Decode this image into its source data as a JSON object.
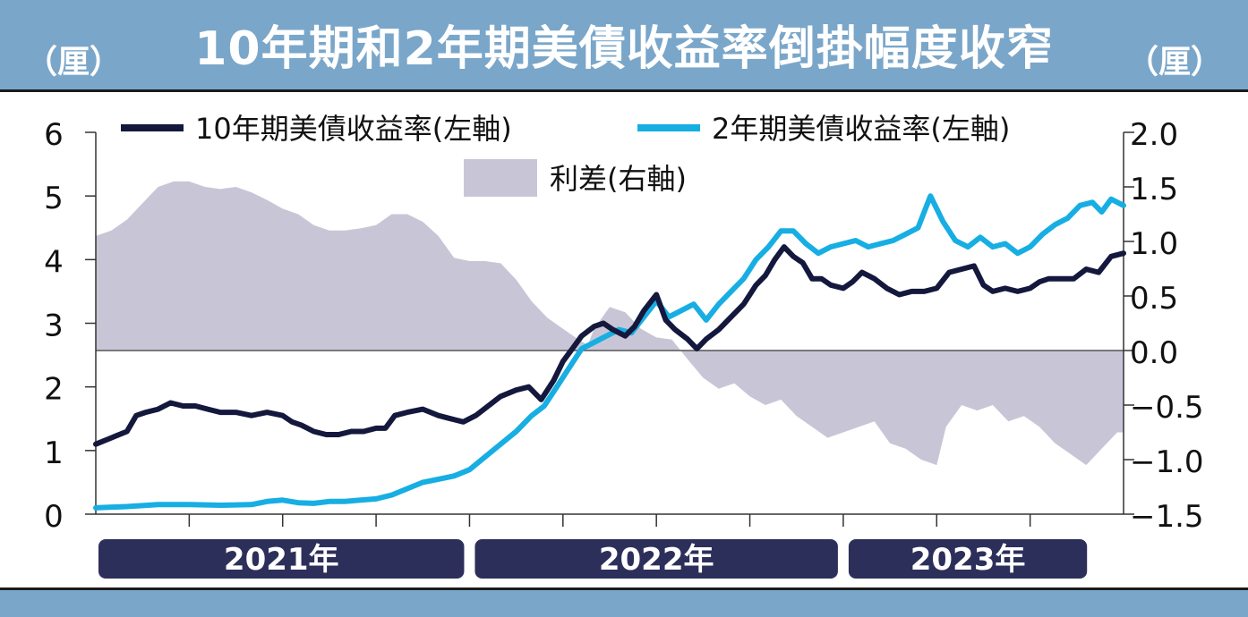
{
  "header": {
    "title": "10年期和2年期美債收益率倒掛幅度收窄",
    "unit_left": "（厘）",
    "unit_right": "（厘）"
  },
  "colors": {
    "ten_year": "#14183d",
    "two_year": "#17aee3",
    "spread": "#c8c6d6",
    "year_band": "#2d2f5b",
    "frame": "#7aa6c9"
  },
  "chart_data": {
    "type": "line",
    "x_unit": "months since Jan 2021",
    "x_range": [
      0,
      32
    ],
    "left_axis": {
      "range": [
        0,
        6
      ],
      "ticks": [
        "0",
        "1",
        "2",
        "3",
        "4",
        "5",
        "6"
      ]
    },
    "right_axis": {
      "range": [
        -1.5,
        2.0
      ],
      "ticks": [
        "−1.5",
        "−1.0",
        "−0.5",
        "0.0",
        "0.5",
        "1.0",
        "1.5",
        "2.0"
      ]
    },
    "years": [
      {
        "label": "2021年",
        "from": 0,
        "to": 12
      },
      {
        "label": "2022年",
        "from": 12,
        "to": 24
      },
      {
        "label": "2023年",
        "from": 24,
        "to": 32
      }
    ],
    "series": [
      {
        "name": "10年期美債收益率(左軸)",
        "axis": "left",
        "points": [
          [
            0,
            1.1
          ],
          [
            0.5,
            1.2
          ],
          [
            1,
            1.3
          ],
          [
            1.3,
            1.55
          ],
          [
            1.6,
            1.6
          ],
          [
            2,
            1.65
          ],
          [
            2.4,
            1.75
          ],
          [
            2.8,
            1.7
          ],
          [
            3.2,
            1.7
          ],
          [
            3.6,
            1.65
          ],
          [
            4,
            1.6
          ],
          [
            4.5,
            1.6
          ],
          [
            5,
            1.55
          ],
          [
            5.5,
            1.6
          ],
          [
            6,
            1.55
          ],
          [
            6.3,
            1.45
          ],
          [
            6.6,
            1.4
          ],
          [
            7,
            1.3
          ],
          [
            7.4,
            1.25
          ],
          [
            7.8,
            1.25
          ],
          [
            8.2,
            1.3
          ],
          [
            8.6,
            1.3
          ],
          [
            9,
            1.35
          ],
          [
            9.3,
            1.35
          ],
          [
            9.6,
            1.55
          ],
          [
            10,
            1.6
          ],
          [
            10.5,
            1.65
          ],
          [
            11,
            1.55
          ],
          [
            11.4,
            1.5
          ],
          [
            11.8,
            1.45
          ],
          [
            12.2,
            1.55
          ],
          [
            12.6,
            1.7
          ],
          [
            13,
            1.85
          ],
          [
            13.5,
            1.95
          ],
          [
            13.9,
            2.0
          ],
          [
            14.3,
            1.8
          ],
          [
            14.7,
            2.1
          ],
          [
            15,
            2.4
          ],
          [
            15.3,
            2.6
          ],
          [
            15.6,
            2.8
          ],
          [
            16,
            2.95
          ],
          [
            16.3,
            3.0
          ],
          [
            16.6,
            2.9
          ],
          [
            17,
            2.8
          ],
          [
            17.3,
            2.95
          ],
          [
            17.6,
            3.2
          ],
          [
            18,
            3.45
          ],
          [
            18.3,
            3.05
          ],
          [
            18.6,
            2.9
          ],
          [
            19,
            2.75
          ],
          [
            19.3,
            2.6
          ],
          [
            19.6,
            2.75
          ],
          [
            20,
            2.9
          ],
          [
            20.4,
            3.1
          ],
          [
            20.8,
            3.3
          ],
          [
            21.2,
            3.6
          ],
          [
            21.5,
            3.75
          ],
          [
            21.8,
            4.0
          ],
          [
            22.1,
            4.2
          ],
          [
            22.4,
            4.05
          ],
          [
            22.7,
            3.95
          ],
          [
            23,
            3.7
          ],
          [
            23.3,
            3.7
          ],
          [
            23.6,
            3.6
          ],
          [
            24,
            3.55
          ],
          [
            24.3,
            3.65
          ],
          [
            24.6,
            3.8
          ],
          [
            25,
            3.7
          ],
          [
            25.4,
            3.55
          ],
          [
            25.8,
            3.45
          ],
          [
            26.2,
            3.5
          ],
          [
            26.6,
            3.5
          ],
          [
            27,
            3.55
          ],
          [
            27.4,
            3.8
          ],
          [
            27.8,
            3.85
          ],
          [
            28.2,
            3.9
          ],
          [
            28.5,
            3.6
          ],
          [
            28.8,
            3.5
          ],
          [
            29.2,
            3.55
          ],
          [
            29.6,
            3.5
          ],
          [
            30,
            3.55
          ],
          [
            30.3,
            3.65
          ],
          [
            30.6,
            3.7
          ],
          [
            31,
            3.7
          ],
          [
            31.4,
            3.7
          ],
          [
            31.8,
            3.85
          ],
          [
            32.2,
            3.8
          ],
          [
            32.6,
            4.05
          ],
          [
            33,
            4.1
          ]
        ]
      },
      {
        "name": "2年期美債收益率(左軸)",
        "axis": "left",
        "points": [
          [
            0,
            0.1
          ],
          [
            1,
            0.12
          ],
          [
            2,
            0.15
          ],
          [
            3,
            0.15
          ],
          [
            4,
            0.14
          ],
          [
            5,
            0.15
          ],
          [
            5.5,
            0.2
          ],
          [
            6,
            0.22
          ],
          [
            6.5,
            0.18
          ],
          [
            7,
            0.17
          ],
          [
            7.5,
            0.2
          ],
          [
            8,
            0.2
          ],
          [
            8.5,
            0.22
          ],
          [
            9,
            0.24
          ],
          [
            9.5,
            0.3
          ],
          [
            10,
            0.4
          ],
          [
            10.5,
            0.5
          ],
          [
            11,
            0.55
          ],
          [
            11.5,
            0.6
          ],
          [
            12,
            0.7
          ],
          [
            12.5,
            0.9
          ],
          [
            13,
            1.1
          ],
          [
            13.5,
            1.3
          ],
          [
            14,
            1.55
          ],
          [
            14.4,
            1.7
          ],
          [
            14.8,
            2.0
          ],
          [
            15.2,
            2.3
          ],
          [
            15.6,
            2.6
          ],
          [
            16,
            2.7
          ],
          [
            16.4,
            2.8
          ],
          [
            16.8,
            2.9
          ],
          [
            17.2,
            2.85
          ],
          [
            17.6,
            3.1
          ],
          [
            18,
            3.35
          ],
          [
            18.4,
            3.1
          ],
          [
            18.8,
            3.2
          ],
          [
            19.2,
            3.3
          ],
          [
            19.6,
            3.05
          ],
          [
            20,
            3.3
          ],
          [
            20.4,
            3.5
          ],
          [
            20.8,
            3.7
          ],
          [
            21.2,
            4.0
          ],
          [
            21.6,
            4.2
          ],
          [
            22,
            4.45
          ],
          [
            22.4,
            4.45
          ],
          [
            22.8,
            4.25
          ],
          [
            23.2,
            4.1
          ],
          [
            23.6,
            4.2
          ],
          [
            24,
            4.25
          ],
          [
            24.4,
            4.3
          ],
          [
            24.8,
            4.2
          ],
          [
            25.2,
            4.25
          ],
          [
            25.6,
            4.3
          ],
          [
            26,
            4.4
          ],
          [
            26.4,
            4.5
          ],
          [
            26.8,
            5.0
          ],
          [
            27.2,
            4.6
          ],
          [
            27.6,
            4.3
          ],
          [
            28,
            4.2
          ],
          [
            28.4,
            4.35
          ],
          [
            28.8,
            4.2
          ],
          [
            29.2,
            4.25
          ],
          [
            29.6,
            4.1
          ],
          [
            30,
            4.2
          ],
          [
            30.4,
            4.4
          ],
          [
            30.8,
            4.55
          ],
          [
            31.2,
            4.65
          ],
          [
            31.6,
            4.85
          ],
          [
            32,
            4.9
          ],
          [
            32.3,
            4.75
          ],
          [
            32.6,
            4.95
          ],
          [
            33,
            4.85
          ]
        ]
      },
      {
        "name": "利差(右軸)",
        "axis": "right",
        "kind": "area",
        "points": [
          [
            0,
            1.05
          ],
          [
            0.5,
            1.1
          ],
          [
            1,
            1.2
          ],
          [
            1.5,
            1.35
          ],
          [
            2,
            1.5
          ],
          [
            2.5,
            1.55
          ],
          [
            3,
            1.55
          ],
          [
            3.5,
            1.5
          ],
          [
            4,
            1.48
          ],
          [
            4.5,
            1.5
          ],
          [
            5,
            1.45
          ],
          [
            5.5,
            1.38
          ],
          [
            6,
            1.3
          ],
          [
            6.5,
            1.25
          ],
          [
            7,
            1.15
          ],
          [
            7.5,
            1.1
          ],
          [
            8,
            1.1
          ],
          [
            8.5,
            1.12
          ],
          [
            9,
            1.15
          ],
          [
            9.5,
            1.25
          ],
          [
            10,
            1.25
          ],
          [
            10.5,
            1.18
          ],
          [
            11,
            1.05
          ],
          [
            11.5,
            0.85
          ],
          [
            12,
            0.82
          ],
          [
            12.5,
            0.82
          ],
          [
            13,
            0.8
          ],
          [
            13.5,
            0.65
          ],
          [
            14,
            0.45
          ],
          [
            14.5,
            0.3
          ],
          [
            15,
            0.2
          ],
          [
            15.5,
            0.1
          ],
          [
            15.8,
            0.05
          ],
          [
            16,
            0.2
          ],
          [
            16.5,
            0.4
          ],
          [
            17,
            0.35
          ],
          [
            17.5,
            0.2
          ],
          [
            18,
            0.12
          ],
          [
            18.5,
            0.1
          ],
          [
            19,
            -0.08
          ],
          [
            19.5,
            -0.25
          ],
          [
            20,
            -0.35
          ],
          [
            20.5,
            -0.3
          ],
          [
            21,
            -0.42
          ],
          [
            21.5,
            -0.5
          ],
          [
            22,
            -0.45
          ],
          [
            22.5,
            -0.6
          ],
          [
            23,
            -0.7
          ],
          [
            23.5,
            -0.8
          ],
          [
            24,
            -0.75
          ],
          [
            24.5,
            -0.7
          ],
          [
            25,
            -0.65
          ],
          [
            25.5,
            -0.85
          ],
          [
            26,
            -0.9
          ],
          [
            26.5,
            -1.0
          ],
          [
            27,
            -1.05
          ],
          [
            27.3,
            -0.7
          ],
          [
            27.8,
            -0.5
          ],
          [
            28.3,
            -0.55
          ],
          [
            28.8,
            -0.5
          ],
          [
            29.3,
            -0.65
          ],
          [
            29.8,
            -0.6
          ],
          [
            30.3,
            -0.7
          ],
          [
            30.8,
            -0.85
          ],
          [
            31.3,
            -0.95
          ],
          [
            31.8,
            -1.05
          ],
          [
            32.3,
            -0.9
          ],
          [
            32.8,
            -0.75
          ],
          [
            33,
            -0.75
          ]
        ]
      }
    ]
  }
}
